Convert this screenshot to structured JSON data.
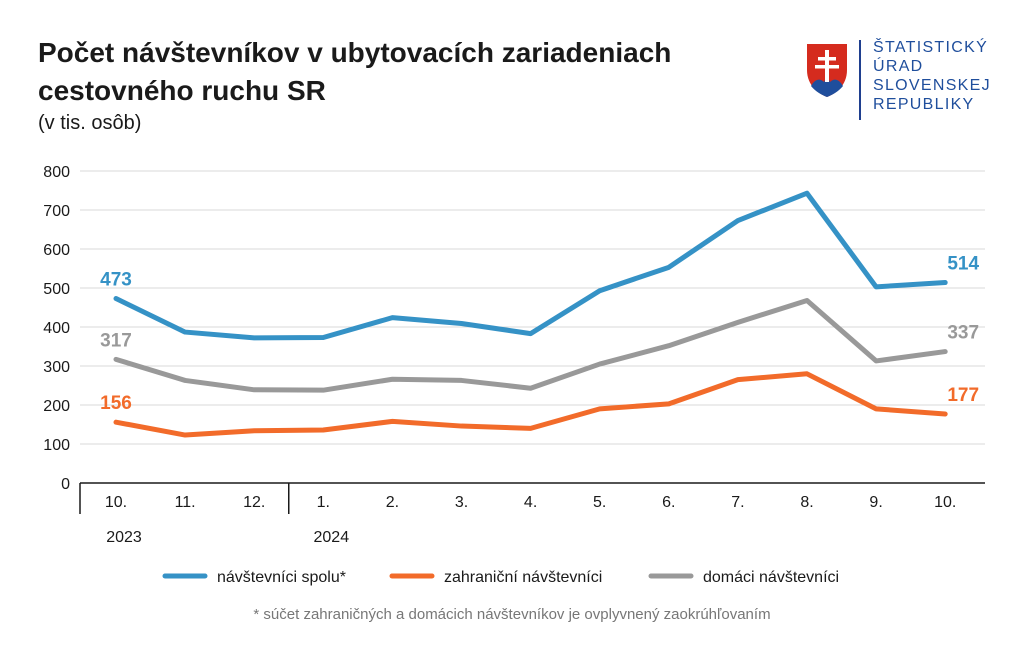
{
  "header": {
    "title_line1": "Počet návštevníkov v ubytovacích zariadeniach",
    "title_line2": "cestovného ruchu SR",
    "subtitle": "(v tis. osôb)"
  },
  "logo": {
    "name": "slovak-statistical-office-logo",
    "lines": [
      "ŠTATISTICKÝ",
      "ÚRAD",
      "SLOVENSKEJ",
      "REPUBLIKY"
    ],
    "color": "#1f4e9c"
  },
  "footnote": "* súčet zahraničných a domácich návštevníkov je ovplyvnený zaokrúhľovaním",
  "chart_data": {
    "type": "line",
    "title": "Počet návštevníkov v ubytovacích zariadeniach cestovného ruchu SR",
    "ylabel": "v tis. osôb",
    "xlabel": "",
    "ylim": [
      0,
      800
    ],
    "yticks": [
      0,
      100,
      200,
      300,
      400,
      500,
      600,
      700,
      800
    ],
    "grid": true,
    "legend_position": "bottom",
    "categories": [
      "10.",
      "11.",
      "12.",
      "1.",
      "2.",
      "3.",
      "4.",
      "5.",
      "6.",
      "7.",
      "8.",
      "9.",
      "10."
    ],
    "year_labels": [
      {
        "label": "2023",
        "at_index": 0
      },
      {
        "label": "2024",
        "at_index": 3
      }
    ],
    "series": [
      {
        "name": "návštevníci spolu*",
        "color": "#3592c6",
        "values": [
          473,
          387,
          372,
          373,
          424,
          409,
          383,
          493,
          553,
          673,
          743,
          503,
          514
        ],
        "end_labels": [
          "473",
          "514"
        ]
      },
      {
        "name": "zahraniční návštevníci",
        "color": "#f26b2a",
        "values": [
          156,
          123,
          134,
          136,
          158,
          146,
          140,
          190,
          203,
          265,
          280,
          190,
          177
        ],
        "end_labels": [
          "156",
          "177"
        ]
      },
      {
        "name": "domáci návštevníci",
        "color": "#999999",
        "values": [
          317,
          263,
          239,
          238,
          266,
          263,
          243,
          305,
          352,
          412,
          468,
          313,
          337
        ],
        "end_labels": [
          "317",
          "337"
        ]
      }
    ]
  }
}
